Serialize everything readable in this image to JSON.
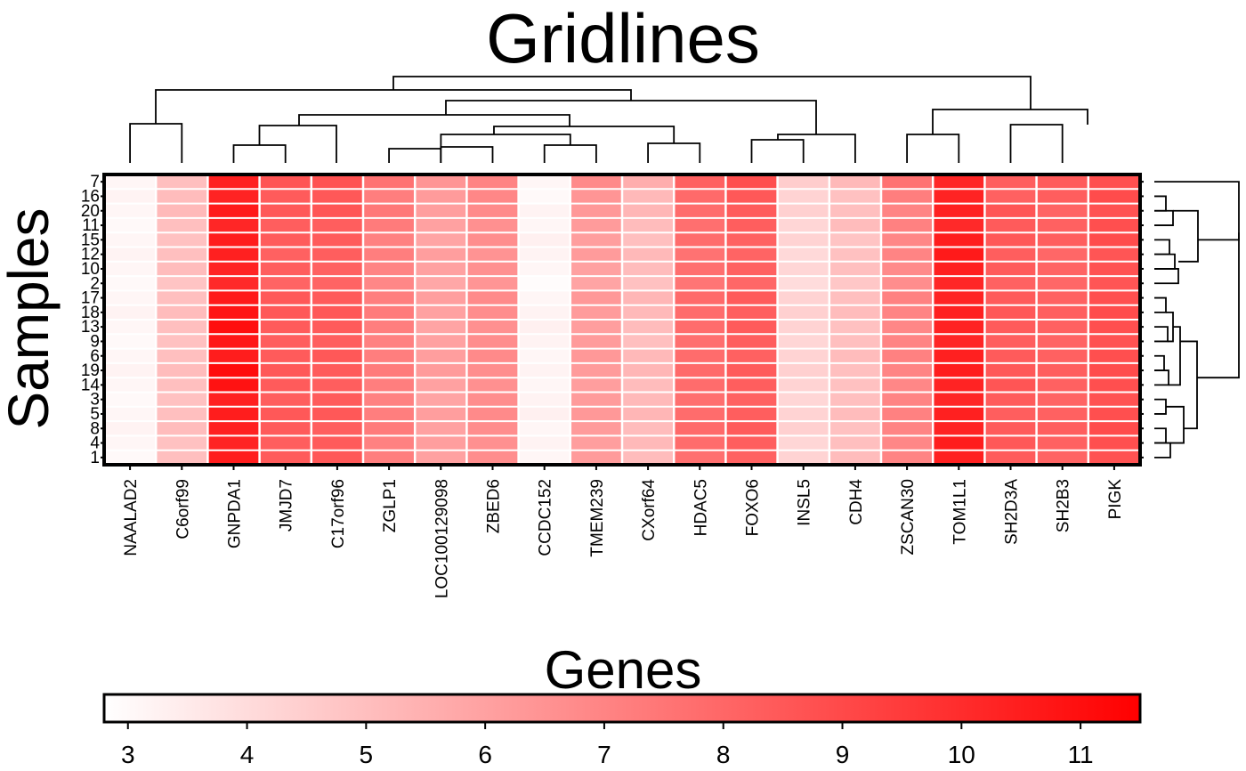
{
  "chart_data": {
    "type": "heatmap",
    "title": "Gridlines",
    "xlabel": "Genes",
    "ylabel": "Samples",
    "genes": [
      "NAALAD2",
      "C6orf99",
      "GNPDA1",
      "JMJD7",
      "C17orf96",
      "ZGLP1",
      "LOC100129098",
      "ZBED6",
      "CCDC152",
      "TMEM239",
      "CXorf64",
      "HDAC5",
      "FOXO6",
      "INSL5",
      "CDH4",
      "ZSCAN30",
      "TOM1L1",
      "SH2D3A",
      "SH2B3",
      "PIGK"
    ],
    "samples": [
      "7",
      "16",
      "20",
      "11",
      "15",
      "12",
      "10",
      "2",
      "17",
      "18",
      "13",
      "9",
      "6",
      "19",
      "14",
      "3",
      "5",
      "8",
      "4",
      "1"
    ],
    "gene_means": [
      3.1,
      5.0,
      10.5,
      8.4,
      8.4,
      7.2,
      6.0,
      6.7,
      3.2,
      6.2,
      5.2,
      7.8,
      8.3,
      4.3,
      5.0,
      7.0,
      10.3,
      8.4,
      8.2,
      8.8
    ],
    "values": [
      [
        3.1,
        5.0,
        10.4,
        8.6,
        8.7,
        7.6,
        6.4,
        7.0,
        3.1,
        6.8,
        5.6,
        8.2,
        8.8,
        4.5,
        5.2,
        7.6,
        10.2,
        8.3,
        8.4,
        8.8
      ],
      [
        3.2,
        5.1,
        10.3,
        8.4,
        8.5,
        7.2,
        6.2,
        6.9,
        3.0,
        6.4,
        5.2,
        7.9,
        8.5,
        4.3,
        4.9,
        7.2,
        10.3,
        8.2,
        8.3,
        8.9
      ],
      [
        3.1,
        5.2,
        10.6,
        8.5,
        8.6,
        7.4,
        6.1,
        6.8,
        3.2,
        6.3,
        5.3,
        7.8,
        8.4,
        4.4,
        5.0,
        7.0,
        10.4,
        8.6,
        8.1,
        8.7
      ],
      [
        3.0,
        5.0,
        10.2,
        8.3,
        8.3,
        7.3,
        6.0,
        6.6,
        3.1,
        6.2,
        5.1,
        7.7,
        8.3,
        4.2,
        5.1,
        7.1,
        10.1,
        8.4,
        8.2,
        8.8
      ],
      [
        3.1,
        4.9,
        10.5,
        8.4,
        8.4,
        7.1,
        5.9,
        6.7,
        3.3,
        6.1,
        5.0,
        7.8,
        8.2,
        4.3,
        4.8,
        6.9,
        10.5,
        8.5,
        8.3,
        8.9
      ],
      [
        3.2,
        5.0,
        10.4,
        8.2,
        8.3,
        7.2,
        6.1,
        6.5,
        3.2,
        6.2,
        5.2,
        7.6,
        8.1,
        4.1,
        4.9,
        7.0,
        10.6,
        8.3,
        8.0,
        8.6
      ],
      [
        3.1,
        5.1,
        10.3,
        8.3,
        8.2,
        7.0,
        6.0,
        6.6,
        3.1,
        6.0,
        5.1,
        7.7,
        8.2,
        4.2,
        5.0,
        6.8,
        10.4,
        8.4,
        8.1,
        8.7
      ],
      [
        3.0,
        4.8,
        10.1,
        8.1,
        8.1,
        6.9,
        5.8,
        6.4,
        2.9,
        5.9,
        4.9,
        7.5,
        8.0,
        4.0,
        4.7,
        6.7,
        10.2,
        8.2,
        8.0,
        8.6
      ],
      [
        3.1,
        5.0,
        10.6,
        8.5,
        8.4,
        7.2,
        6.1,
        6.8,
        3.1,
        6.3,
        5.3,
        7.9,
        8.4,
        4.3,
        5.0,
        7.1,
        10.3,
        8.4,
        8.2,
        8.8
      ],
      [
        3.2,
        5.1,
        10.8,
        8.5,
        8.5,
        7.3,
        6.0,
        6.7,
        3.2,
        6.2,
        5.2,
        7.8,
        8.3,
        4.4,
        5.1,
        7.0,
        10.4,
        8.5,
        8.3,
        8.9
      ],
      [
        3.1,
        5.0,
        11.0,
        8.4,
        8.4,
        7.2,
        5.9,
        6.6,
        3.3,
        6.1,
        5.1,
        7.8,
        8.4,
        4.3,
        4.9,
        6.9,
        10.3,
        8.4,
        8.2,
        8.8
      ],
      [
        3.0,
        4.9,
        10.7,
        8.3,
        8.3,
        7.1,
        6.0,
        6.7,
        3.2,
        6.2,
        5.0,
        7.7,
        8.3,
        4.2,
        5.0,
        7.0,
        10.2,
        8.3,
        8.1,
        8.7
      ],
      [
        3.1,
        5.0,
        10.5,
        8.4,
        8.5,
        7.2,
        6.1,
        6.8,
        3.1,
        6.3,
        5.2,
        7.8,
        8.2,
        4.3,
        5.1,
        7.1,
        10.4,
        8.4,
        8.2,
        8.8
      ],
      [
        3.2,
        5.1,
        11.1,
        8.5,
        8.4,
        7.3,
        6.2,
        6.7,
        3.2,
        6.2,
        5.3,
        7.9,
        8.4,
        4.4,
        5.0,
        7.0,
        10.5,
        8.5,
        8.3,
        8.9
      ],
      [
        3.1,
        5.0,
        10.9,
        8.4,
        8.3,
        7.2,
        6.0,
        6.6,
        3.1,
        6.1,
        5.1,
        7.8,
        8.3,
        4.3,
        4.9,
        6.9,
        10.3,
        8.6,
        8.2,
        8.8
      ],
      [
        3.0,
        4.9,
        10.4,
        8.3,
        8.4,
        7.1,
        5.9,
        6.7,
        3.2,
        6.2,
        5.2,
        7.7,
        8.2,
        4.2,
        5.0,
        7.0,
        10.2,
        8.4,
        8.1,
        8.7
      ],
      [
        3.1,
        5.0,
        10.5,
        8.5,
        8.5,
        7.2,
        6.1,
        6.8,
        3.3,
        6.3,
        5.3,
        7.8,
        8.3,
        4.3,
        5.1,
        7.1,
        10.4,
        8.3,
        8.2,
        8.8
      ],
      [
        3.2,
        5.1,
        10.4,
        8.4,
        8.3,
        7.3,
        6.0,
        6.7,
        3.1,
        6.2,
        5.1,
        7.9,
        8.4,
        4.4,
        4.9,
        7.0,
        10.3,
        8.4,
        8.3,
        8.9
      ],
      [
        3.1,
        4.9,
        10.3,
        8.3,
        8.4,
        7.1,
        6.1,
        6.6,
        3.2,
        6.1,
        5.2,
        7.8,
        8.3,
        4.2,
        5.0,
        6.9,
        10.5,
        8.5,
        8.2,
        8.8
      ],
      [
        3.0,
        5.0,
        10.5,
        8.4,
        8.5,
        7.2,
        6.0,
        6.7,
        3.1,
        6.2,
        5.1,
        7.7,
        8.2,
        4.3,
        5.1,
        7.0,
        10.4,
        8.4,
        8.1,
        8.7
      ]
    ],
    "colorbar": {
      "min": 2.8,
      "max": 11.5,
      "ticks": [
        3,
        4,
        5,
        6,
        7,
        8,
        9,
        10,
        11
      ],
      "low_color": "#ffffff",
      "high_color": "#ff0000"
    },
    "grid": true,
    "dendrograms": [
      "top",
      "right"
    ]
  }
}
